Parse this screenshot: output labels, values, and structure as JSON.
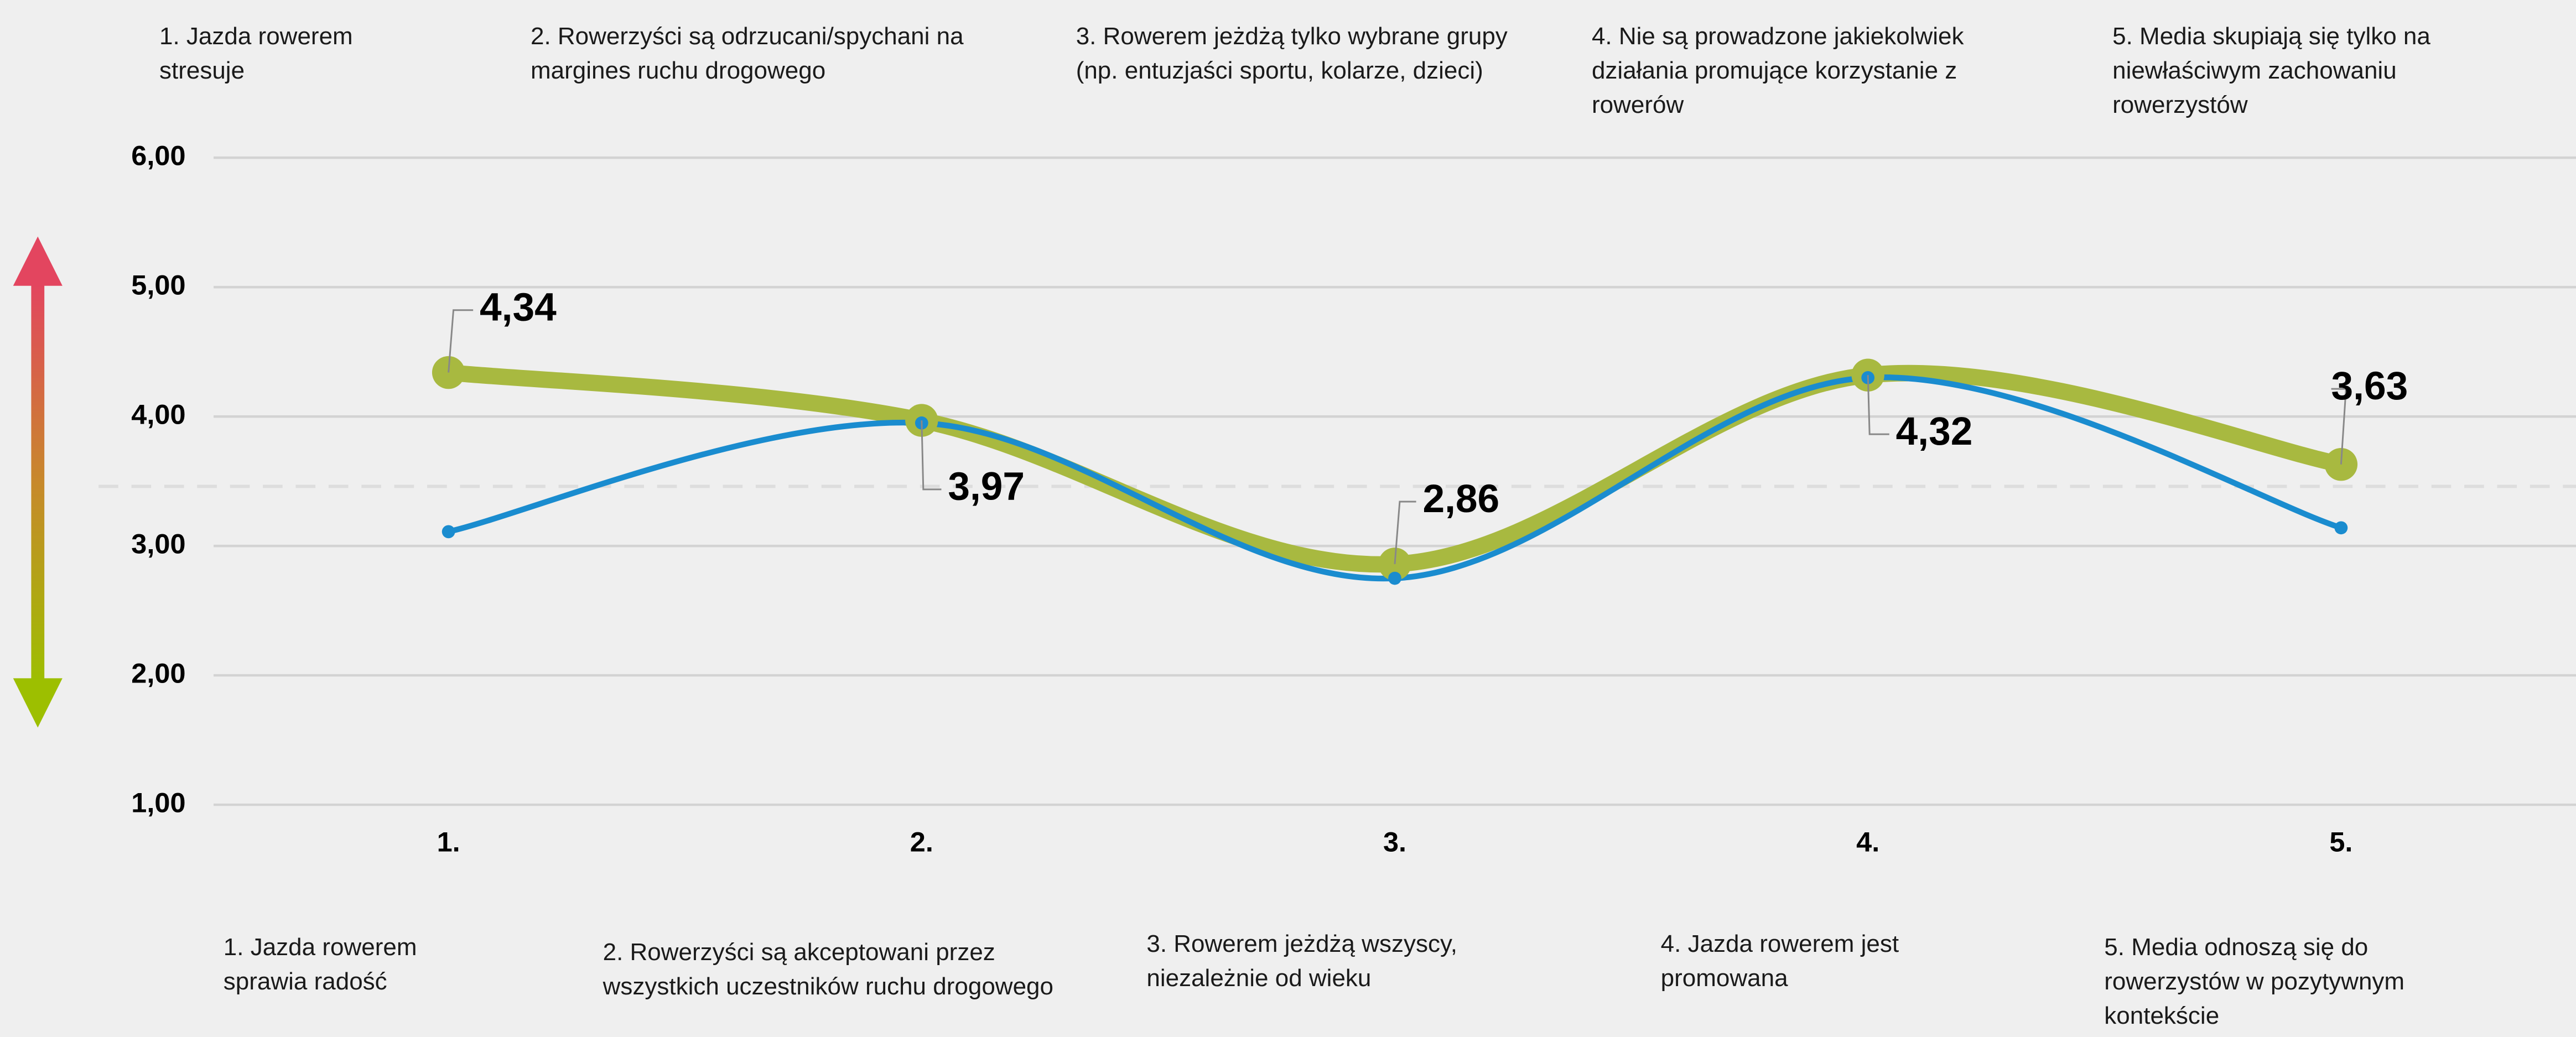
{
  "chart_data": {
    "type": "line",
    "categories": [
      "1.",
      "2.",
      "3.",
      "4.",
      "5."
    ],
    "series": [
      {
        "name": null,
        "color": "#a8b940",
        "values": [
          4.34,
          3.97,
          2.86,
          4.32,
          3.63
        ],
        "value_labels": [
          "4,34",
          "3,97",
          "2,86",
          "4,32",
          "3,63"
        ]
      },
      {
        "name": null,
        "color": "#1a8ccf",
        "values": [
          3.11,
          3.95,
          2.75,
          4.3,
          3.14
        ]
      }
    ],
    "reference_line": {
      "value": 3.46,
      "color": "#dddddd"
    },
    "ylim": [
      1,
      6
    ],
    "yticks": [
      {
        "value": 1,
        "label": "1,00"
      },
      {
        "value": 2,
        "label": "2,00"
      },
      {
        "value": 3,
        "label": "3,00"
      },
      {
        "value": 4,
        "label": "4,00"
      },
      {
        "value": 5,
        "label": "5,00"
      },
      {
        "value": 6,
        "label": "6,00"
      }
    ],
    "grid": true,
    "top_labels": [
      "1. Jazda rowerem stresuje",
      "2. Rowerzyści są odrzucani/spychani na margines ruchu drogowego",
      "3. Rowerem jeżdżą tylko wybrane grupy (np. entuzjaści sportu, kolarze, dzieci)",
      "4. Nie są prowadzone jakiekolwiek działania promujące korzystanie z rowerów",
      "5. Media skupiają się tylko na niewłaściwym zachowaniu rowerzystów"
    ],
    "bottom_labels": [
      "1. Jazda rowerem sprawia radość",
      "2. Rowerzyści są akceptowani przez wszystkich uczestników ruchu drogowego",
      "3. Rowerem jeżdżą wszyscy, niezależnie od wieku",
      "4. Jazda rowerem jest promowana",
      "5. Media odnoszą się do rowerzystów w pozytywnym kontekście"
    ]
  }
}
